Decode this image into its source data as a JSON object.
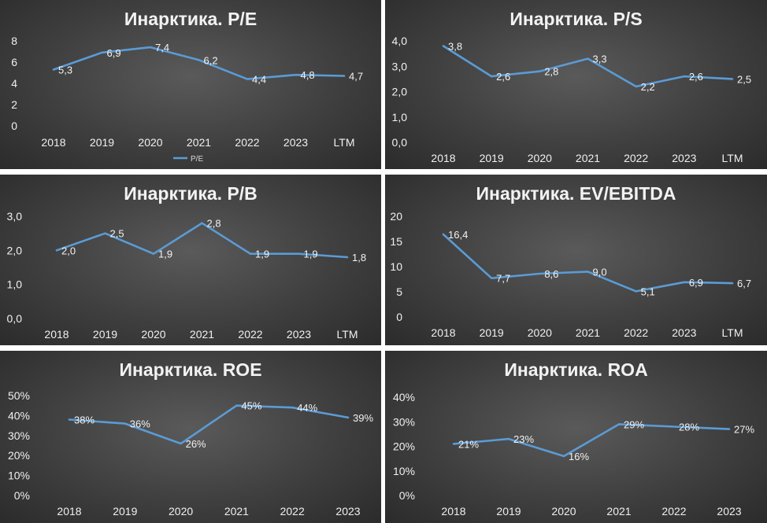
{
  "chart_data": [
    {
      "type": "line",
      "title": "Инарктика. P/E",
      "categories": [
        "2018",
        "2019",
        "2020",
        "2021",
        "2022",
        "2023",
        "LTM"
      ],
      "series": [
        {
          "name": "P/E",
          "values": [
            5.3,
            6.9,
            7.4,
            6.2,
            4.4,
            4.8,
            4.7
          ]
        }
      ],
      "data_labels": [
        "5,3",
        "6,9",
        "7,4",
        "6,2",
        "4,4",
        "4,8",
        "4,7"
      ],
      "y_ticks": [
        "0",
        "2",
        "4",
        "6",
        "8"
      ],
      "ylim": [
        0,
        8
      ],
      "legend": "bottom",
      "grid": false,
      "line_color": "#5b9bd5"
    },
    {
      "type": "line",
      "title": "Инарктика. P/S",
      "categories": [
        "2018",
        "2019",
        "2020",
        "2021",
        "2022",
        "2023",
        "LTM"
      ],
      "series": [
        {
          "values": [
            3.8,
            2.6,
            2.8,
            3.3,
            2.2,
            2.6,
            2.5
          ]
        }
      ],
      "data_labels": [
        "3,8",
        "2,6",
        "2,8",
        "3,3",
        "2,2",
        "2,6",
        "2,5"
      ],
      "y_ticks": [
        "0,0",
        "1,0",
        "2,0",
        "3,0",
        "4,0"
      ],
      "ylim": [
        0,
        4
      ],
      "grid": false,
      "line_color": "#5b9bd5"
    },
    {
      "type": "line",
      "title": "Инарктика. P/B",
      "categories": [
        "2018",
        "2019",
        "2020",
        "2021",
        "2022",
        "2023",
        "LTM"
      ],
      "series": [
        {
          "values": [
            2.0,
            2.5,
            1.9,
            2.8,
            1.9,
            1.9,
            1.8
          ]
        }
      ],
      "data_labels": [
        "2,0",
        "2,5",
        "1,9",
        "2,8",
        "1,9",
        "1,9",
        "1,8"
      ],
      "y_ticks": [
        "0,0",
        "1,0",
        "2,0",
        "3,0"
      ],
      "ylim": [
        0,
        3
      ],
      "grid": false,
      "line_color": "#5b9bd5"
    },
    {
      "type": "line",
      "title": "Инарктика. EV/EBITDA",
      "categories": [
        "2018",
        "2019",
        "2020",
        "2021",
        "2022",
        "2023",
        "LTM"
      ],
      "series": [
        {
          "values": [
            16.4,
            7.7,
            8.6,
            9.0,
            5.1,
            6.9,
            6.7
          ]
        }
      ],
      "data_labels": [
        "16,4",
        "7,7",
        "8,6",
        "9,0",
        "5,1",
        "6,9",
        "6,7"
      ],
      "y_ticks": [
        "0",
        "5",
        "10",
        "15",
        "20"
      ],
      "ylim": [
        0,
        20
      ],
      "grid": false,
      "line_color": "#5b9bd5"
    },
    {
      "type": "line",
      "title": "Инарктика. ROE",
      "categories": [
        "2018",
        "2019",
        "2020",
        "2021",
        "2022",
        "2023"
      ],
      "series": [
        {
          "values": [
            38,
            36,
            26,
            45,
            44,
            39
          ]
        }
      ],
      "data_labels": [
        "38%",
        "36%",
        "26%",
        "45%",
        "44%",
        "39%"
      ],
      "y_ticks": [
        "0%",
        "10%",
        "20%",
        "30%",
        "40%",
        "50%"
      ],
      "ylim": [
        0,
        50
      ],
      "grid": false,
      "line_color": "#5b9bd5"
    },
    {
      "type": "line",
      "title": "Инарктика. ROA",
      "categories": [
        "2018",
        "2019",
        "2020",
        "2021",
        "2022",
        "2023"
      ],
      "series": [
        {
          "values": [
            21,
            23,
            16,
            29,
            28,
            27
          ]
        }
      ],
      "data_labels": [
        "21%",
        "23%",
        "16%",
        "29%",
        "28%",
        "27%"
      ],
      "y_ticks": [
        "0%",
        "10%",
        "20%",
        "30%",
        "40%"
      ],
      "ylim": [
        0,
        40
      ],
      "grid": false,
      "line_color": "#5b9bd5"
    }
  ]
}
